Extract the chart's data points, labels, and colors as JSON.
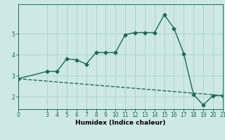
{
  "xlabel": "Humidex (Indice chaleur)",
  "bg_color": "#cde8e5",
  "line_color": "#1a6b5a",
  "grid_color": "#afd4d0",
  "series1_x": [
    0,
    3,
    4,
    5,
    6,
    7,
    8,
    9,
    10,
    11,
    12,
    13,
    14,
    15,
    16,
    17,
    18,
    19,
    20,
    21
  ],
  "series1_y": [
    2.85,
    3.2,
    3.2,
    3.8,
    3.75,
    3.55,
    4.1,
    4.1,
    4.1,
    4.95,
    5.05,
    5.05,
    5.05,
    5.9,
    5.25,
    4.05,
    2.1,
    1.6,
    2.05,
    2.05
  ],
  "series2_x": [
    0,
    21
  ],
  "series2_y": [
    2.85,
    2.05
  ],
  "xlim": [
    0,
    21
  ],
  "ylim": [
    1.4,
    6.4
  ],
  "xticks": [
    0,
    3,
    4,
    5,
    6,
    7,
    8,
    9,
    10,
    11,
    12,
    13,
    14,
    15,
    16,
    17,
    18,
    19,
    20,
    21
  ],
  "yticks": [
    2,
    3,
    4,
    5
  ],
  "marker": "D",
  "marker_size": 2.5,
  "linewidth": 1.0,
  "axis_fontsize": 6.5,
  "tick_fontsize": 5.5
}
